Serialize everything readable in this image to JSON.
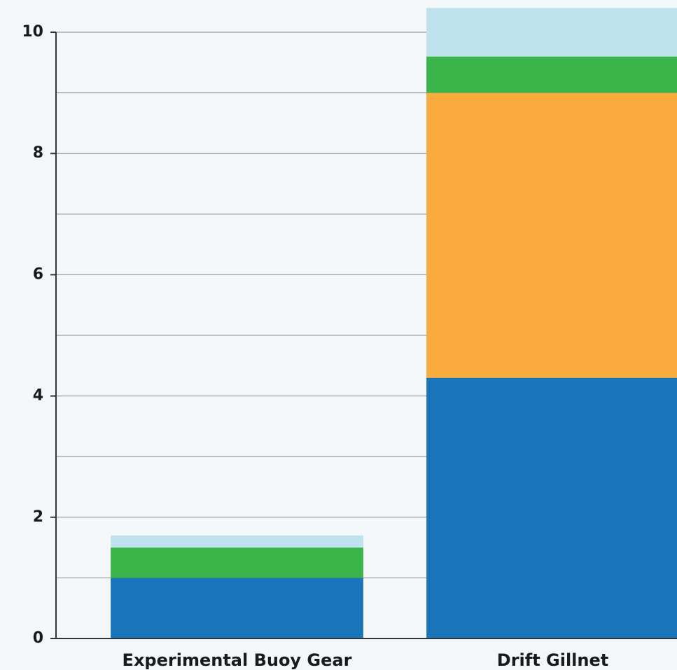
{
  "chart_data": {
    "type": "stacked_bar",
    "categories": [
      "Experimental Buoy Gear",
      "Drift Gillnet"
    ],
    "series": [
      {
        "color": "#1b75bb",
        "values": [
          1.0,
          4.3
        ]
      },
      {
        "color": "#f9ab3e",
        "values": [
          0,
          4.7
        ]
      },
      {
        "color": "#3bb54a",
        "values": [
          0.5,
          0.6
        ]
      },
      {
        "color": "#bfe2ee",
        "values": [
          0.2,
          0.8
        ]
      }
    ],
    "ylim": [
      0,
      10.4
    ],
    "yticks": [
      0,
      2,
      4,
      6,
      8,
      10
    ],
    "minor_yticks": [
      1,
      3,
      5,
      7,
      9
    ],
    "grid": true
  }
}
